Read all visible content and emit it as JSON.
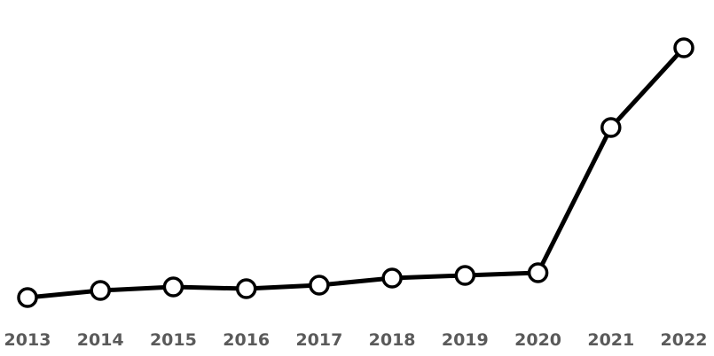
{
  "chart_data": {
    "type": "line",
    "title": "",
    "xlabel": "",
    "ylabel": "",
    "categories": [
      "2013",
      "2014",
      "2015",
      "2016",
      "2017",
      "2018",
      "2019",
      "2020",
      "2021",
      "2022"
    ],
    "series": [
      {
        "values": [
          0,
          8,
          12,
          10,
          14,
          22,
          25,
          28,
          192,
          282
        ]
      }
    ],
    "ylim": [
      0,
      282
    ],
    "grid": false,
    "legend": "none",
    "colors": {
      "line": "#000000",
      "marker_fill": "#ffffff",
      "tick_label": "#5a5a5a",
      "background": "#ffffff"
    }
  }
}
